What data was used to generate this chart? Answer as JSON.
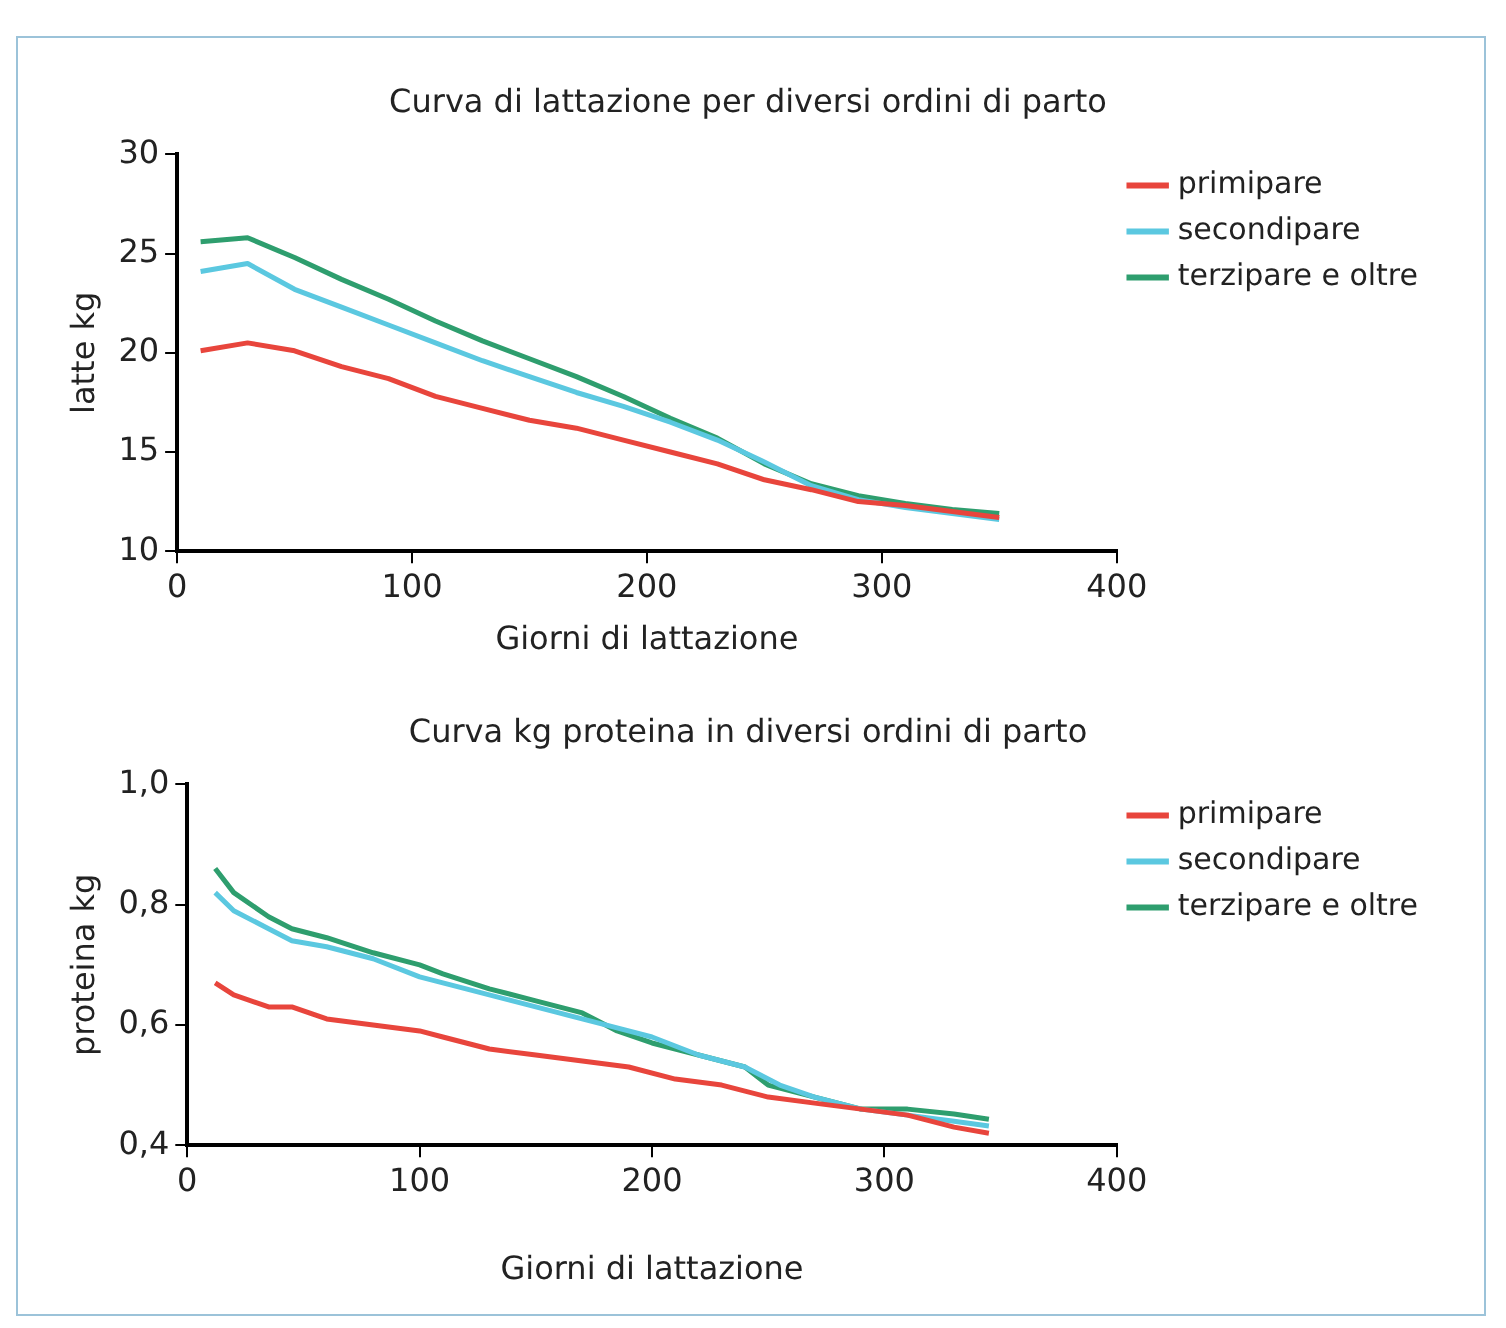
{
  "chart_data": [
    {
      "type": "line",
      "title": "Curva di lattazione per diversi ordini di parto",
      "xlabel": "Giorni di lattazione",
      "ylabel": "latte kg",
      "xlim": [
        0,
        400
      ],
      "xticks": [
        0,
        100,
        200,
        300,
        400
      ],
      "ylim": [
        10,
        30
      ],
      "yticks": [
        10,
        15,
        20,
        25,
        30
      ],
      "grid": false,
      "legend": "top right",
      "marker": "none",
      "x": [
        10,
        30,
        50,
        70,
        90,
        110,
        130,
        150,
        170,
        190,
        210,
        230,
        250,
        270,
        290,
        310,
        330,
        350
      ],
      "series": [
        {
          "name": "primipare",
          "color": "#e8453c",
          "values": [
            20.1,
            20.5,
            20.1,
            19.3,
            18.7,
            17.8,
            17.2,
            16.6,
            16.2,
            15.6,
            15.0,
            14.4,
            13.6,
            13.1,
            12.5,
            12.3,
            12.0,
            11.7
          ]
        },
        {
          "name": "secondipare",
          "color": "#5bc8e0",
          "values": [
            24.1,
            24.5,
            23.2,
            22.3,
            21.4,
            20.5,
            19.6,
            18.8,
            18.0,
            17.3,
            16.5,
            15.6,
            14.5,
            13.3,
            12.6,
            12.2,
            11.9,
            11.6
          ]
        },
        {
          "name": "terzipare e oltre",
          "color": "#2e9e6e",
          "values": [
            25.6,
            25.8,
            24.8,
            23.7,
            22.7,
            21.6,
            20.6,
            19.7,
            18.8,
            17.8,
            16.7,
            15.7,
            14.4,
            13.4,
            12.8,
            12.4,
            12.1,
            11.9
          ]
        }
      ]
    },
    {
      "type": "line",
      "title": "Curva kg proteina in diversi ordini di parto",
      "xlabel": "Giorni di lattazione",
      "ylabel": "proteina kg",
      "xlim": [
        0,
        400
      ],
      "xticks": [
        0,
        100,
        200,
        300,
        400
      ],
      "ylim": [
        0.4,
        1.0
      ],
      "yticks": [
        {
          "value": 0.4,
          "label": "0,4"
        },
        {
          "value": 0.6,
          "label": "0,6"
        },
        {
          "value": 0.8,
          "label": "0,8"
        },
        {
          "value": 1.0,
          "label": "1,0"
        }
      ],
      "grid": false,
      "legend": "top right",
      "marker": "none",
      "series": [
        {
          "name": "primipare",
          "color": "#e8453c",
          "x": [
            12,
            20,
            35,
            45,
            60,
            80,
            100,
            110,
            130,
            150,
            170,
            190,
            210,
            230,
            250,
            270,
            290,
            310,
            330,
            345
          ],
          "values": [
            0.67,
            0.65,
            0.63,
            0.63,
            0.61,
            0.6,
            0.59,
            0.58,
            0.56,
            0.55,
            0.54,
            0.53,
            0.51,
            0.5,
            0.48,
            0.47,
            0.46,
            0.45,
            0.43,
            0.42
          ]
        },
        {
          "name": "secondipare",
          "color": "#5bc8e0",
          "x": [
            12,
            20,
            35,
            45,
            60,
            80,
            100,
            120,
            140,
            160,
            180,
            200,
            220,
            240,
            255,
            270,
            290,
            310,
            330,
            345
          ],
          "values": [
            0.82,
            0.79,
            0.76,
            0.74,
            0.73,
            0.71,
            0.68,
            0.66,
            0.64,
            0.62,
            0.6,
            0.58,
            0.55,
            0.53,
            0.5,
            0.48,
            0.46,
            0.45,
            0.44,
            0.432
          ]
        },
        {
          "name": "terzipare e oltre",
          "color": "#2e9e6e",
          "x": [
            12,
            20,
            35,
            45,
            60,
            80,
            100,
            110,
            130,
            150,
            170,
            185,
            200,
            220,
            240,
            250,
            270,
            290,
            310,
            330,
            345
          ],
          "values": [
            0.86,
            0.82,
            0.78,
            0.76,
            0.745,
            0.72,
            0.7,
            0.685,
            0.66,
            0.64,
            0.62,
            0.59,
            0.57,
            0.55,
            0.53,
            0.5,
            0.48,
            0.46,
            0.46,
            0.452,
            0.443
          ]
        }
      ]
    }
  ]
}
